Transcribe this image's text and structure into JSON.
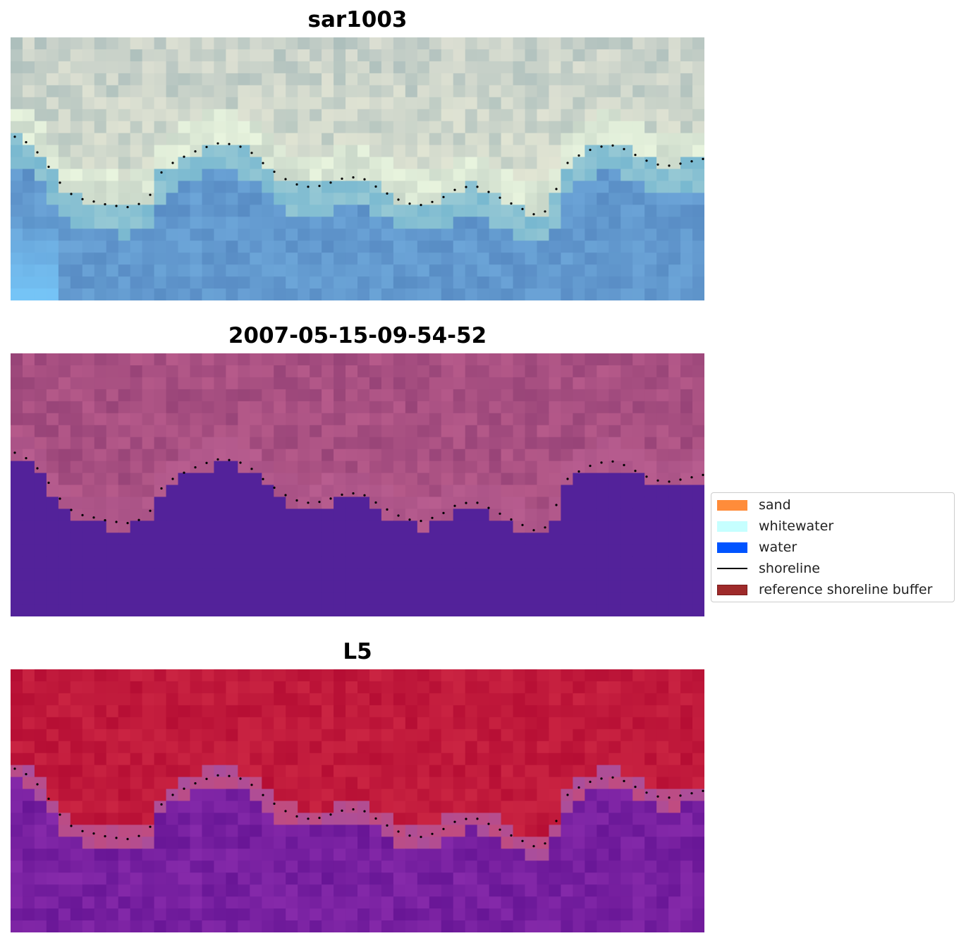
{
  "panels": [
    {
      "title": "sar1003",
      "style": "rgb"
    },
    {
      "title": "2007-05-15-09-54-52",
      "style": "classified"
    },
    {
      "title": "L5",
      "style": "index"
    }
  ],
  "legend": {
    "placement": "right",
    "items": [
      {
        "label": "sand",
        "type": "patch",
        "color": "#ff8c3a"
      },
      {
        "label": "whitewater",
        "type": "patch",
        "color": "#c6ffff"
      },
      {
        "label": "water",
        "type": "patch",
        "color": "#0054ff"
      },
      {
        "label": "shoreline",
        "type": "line",
        "color": "#000000"
      },
      {
        "label": "reference shoreline buffer",
        "type": "patch",
        "color": "#9e2a2a",
        "edge": "#7a1a1a"
      }
    ]
  },
  "colors": {
    "classified_water": "#53229a",
    "classified_land": "#a34f7f",
    "index_land": "#c0143c",
    "index_water": "#6e1d9e",
    "shoreline_points": "#000000"
  }
}
